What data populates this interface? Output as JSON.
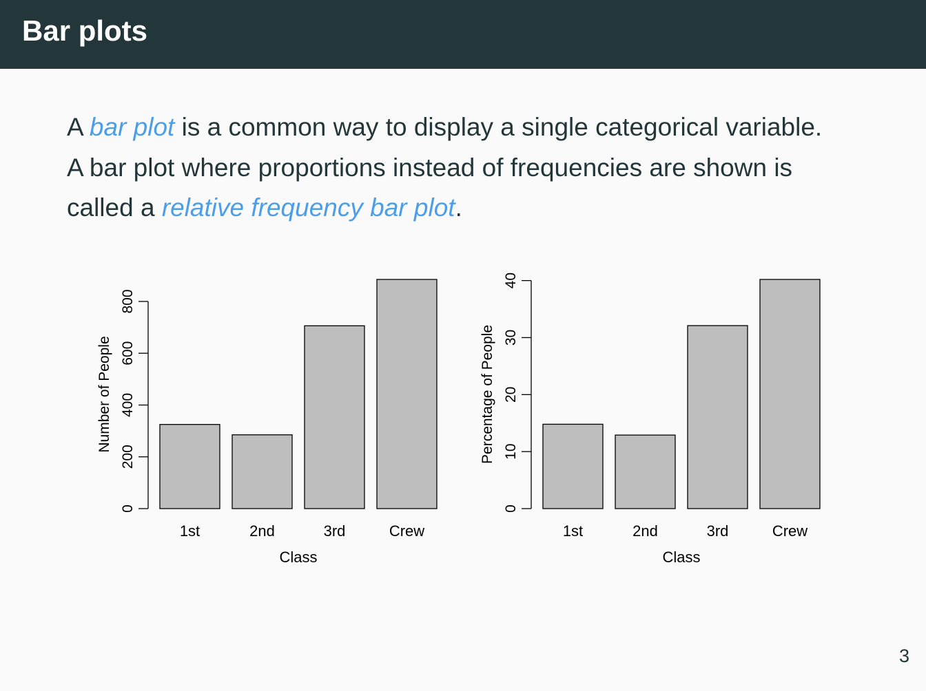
{
  "slide": {
    "title": "Bar plots",
    "paragraph": {
      "line1": [
        "A ",
        "bar plot",
        " is a common way to display a single categorical variable."
      ],
      "line2": "A bar plot where proportions instead of frequencies are shown is",
      "line3": [
        "called a ",
        "relative frequency bar plot",
        "."
      ]
    },
    "page_number": "3"
  },
  "colors": {
    "header_bg": "#23373b",
    "accent": "#4c9fe6",
    "bar_fill": "#bebebe",
    "text": "#23373b"
  },
  "chart_data": [
    {
      "type": "bar",
      "categories": [
        "1st",
        "2nd",
        "3rd",
        "Crew"
      ],
      "values": [
        325,
        285,
        706,
        885
      ],
      "xlabel": "Class",
      "ylabel": "Number of People",
      "ylim": [
        0,
        885
      ],
      "yticks": [
        0,
        200,
        400,
        600,
        800
      ],
      "grid": false
    },
    {
      "type": "bar",
      "categories": [
        "1st",
        "2nd",
        "3rd",
        "Crew"
      ],
      "values": [
        14.8,
        12.9,
        32.1,
        40.2
      ],
      "xlabel": "Class",
      "ylabel": "Percentage of People",
      "ylim": [
        0,
        40.2
      ],
      "yticks": [
        0,
        10,
        20,
        30,
        40
      ],
      "grid": false
    }
  ]
}
